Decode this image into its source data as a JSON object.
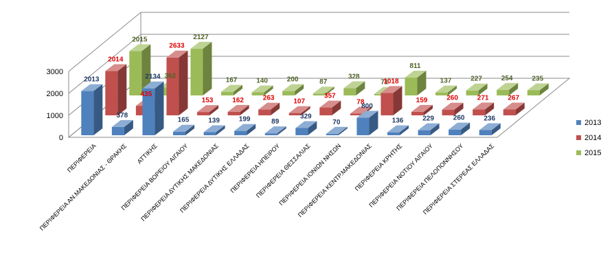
{
  "chart_data": {
    "type": "bar",
    "subtype": "3d-clustered-depth",
    "title": "",
    "xlabel": "",
    "ylabel": "",
    "ylim": [
      0,
      3000
    ],
    "yticks": [
      "0",
      "1000",
      "2000",
      "3000"
    ],
    "legend_position": "right",
    "categories": [
      "ΠΕΡΙΦΕΡΕΙΑ",
      "ΠΕΡΙΦΕΡΕΙΑ ΑΝ.ΜΑΚΕΔΟΝΙΑΣ - ΘΡΑΚΗΣ",
      "ΑΤΤΙΚΗΣ",
      "ΠΕΡΙΦΕΡΕΙΑ ΒΟΡΕΙΟΥ ΑΙΓΑΙΟΥ",
      "ΠΕΡΙΦΕΡΕΙΑ ΔΥΤΙΚΗΣ ΜΑΚΕΔΟΝΙΑΣ",
      "ΠΕΡΙΦΕΡΕΙΑ ΔΥΤΙΚΗΣ ΕΛΛΑΔΑΣ",
      "ΠΕΡΙΦΕΡΕΙΑ ΗΠΕΙΡΟΥ",
      "ΠΕΡΙΦΕΡΕΙΑ ΘΕΣΣΑΛΙΑΣ",
      "ΠΕΡΙΦΕΡΕΙΑ ΙΟΝΙΩΝ ΝΗΣΩΝ",
      "ΠΕΡΙΦΕΡΕΙΑ ΚΕΝΤΡ.ΜΑΚΕΔΟΝΙΑΣ",
      "ΠΕΡΙΦΕΡΕΙΑ ΚΡΗΤΗΣ",
      "ΠΕΡΙΦΕΡΕΙΑ ΝΟΤΙΟΥ ΑΙΓΑΙΟΥ",
      "ΠΕΡΙΦΕΡΕΙΑ ΠΕΛΟΠΟΝΝΗΣΟΥ",
      "ΠΕΡΙΦΕΡΕΙΑ ΣΤΕΡΕΑΣ ΕΛΛΑΔΑΣ"
    ],
    "series": [
      {
        "name": "2013",
        "color": "#4f81bd",
        "label_color": "#1f3864",
        "values": [
          2013,
          378,
          2134,
          165,
          139,
          199,
          89,
          329,
          70,
          800,
          136,
          229,
          260,
          236
        ]
      },
      {
        "name": "2014",
        "color": "#c0504d",
        "label_color": "#e00000",
        "values": [
          2014,
          435,
          2633,
          153,
          162,
          263,
          107,
          357,
          78,
          1018,
          159,
          260,
          271,
          267
        ]
      },
      {
        "name": "2015",
        "color": "#9bbb59",
        "label_color": "#4f6228",
        "values": [
          2015,
          362,
          2127,
          167,
          140,
          200,
          87,
          328,
          71,
          811,
          137,
          227,
          254,
          235
        ]
      }
    ]
  }
}
